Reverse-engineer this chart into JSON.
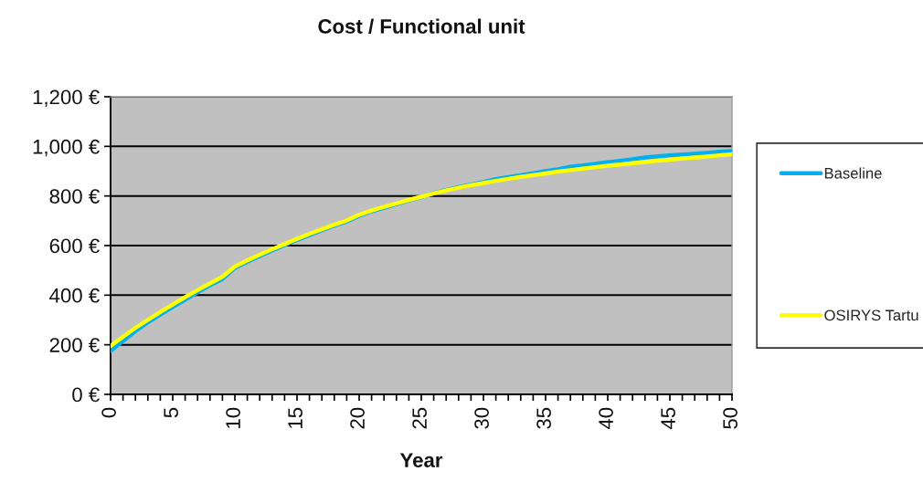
{
  "chart_data": {
    "type": "line",
    "title": "Cost / Functional unit",
    "xlabel": "Year",
    "x": [
      0,
      1,
      2,
      3,
      4,
      5,
      6,
      7,
      8,
      9,
      10,
      11,
      12,
      13,
      14,
      15,
      16,
      17,
      18,
      19,
      20,
      21,
      22,
      23,
      24,
      25,
      26,
      27,
      28,
      29,
      30,
      31,
      32,
      33,
      34,
      35,
      36,
      37,
      38,
      39,
      40,
      41,
      42,
      43,
      44,
      45,
      46,
      47,
      48,
      49,
      50
    ],
    "series": [
      {
        "name": "Baseline",
        "color": "#00b0f0",
        "values": [
          175,
          215,
          255,
          290,
          322,
          352,
          382,
          412,
          440,
          465,
          510,
          535,
          558,
          580,
          602,
          622,
          642,
          662,
          680,
          697,
          720,
          738,
          752,
          767,
          782,
          796,
          811,
          824,
          836,
          846,
          856,
          868,
          876,
          884,
          892,
          900,
          908,
          918,
          923,
          930,
          936,
          942,
          948,
          955,
          960,
          964,
          967,
          970,
          974,
          978,
          981
        ]
      },
      {
        "name": "OSIRYS Tartu",
        "color": "#ffff00",
        "values": [
          195,
          232,
          268,
          300,
          332,
          362,
          392,
          420,
          447,
          474,
          515,
          540,
          563,
          585,
          606,
          627,
          647,
          666,
          684,
          701,
          724,
          741,
          756,
          770,
          784,
          797,
          810,
          822,
          833,
          843,
          852,
          861,
          869,
          877,
          884,
          891,
          898,
          904,
          910,
          916,
          922,
          927,
          932,
          937,
          942,
          946,
          951,
          955,
          959,
          964,
          968
        ]
      }
    ],
    "xlim": [
      0,
      50
    ],
    "xticks": [
      0,
      {
        "value": 1,
        "label": null
      },
      {
        "value": 2,
        "label": null
      },
      {
        "value": 3,
        "label": null
      },
      {
        "value": 4,
        "label": null
      },
      5,
      {
        "value": 6,
        "label": null
      },
      {
        "value": 7,
        "label": null
      },
      {
        "value": 8,
        "label": null
      },
      {
        "value": 9,
        "label": null
      },
      10,
      {
        "value": 11,
        "label": null
      },
      {
        "value": 12,
        "label": null
      },
      {
        "value": 13,
        "label": null
      },
      {
        "value": 14,
        "label": null
      },
      15,
      {
        "value": 16,
        "label": null
      },
      {
        "value": 17,
        "label": null
      },
      {
        "value": 18,
        "label": null
      },
      {
        "value": 19,
        "label": null
      },
      20,
      {
        "value": 21,
        "label": null
      },
      {
        "value": 22,
        "label": null
      },
      {
        "value": 23,
        "label": null
      },
      {
        "value": 24,
        "label": null
      },
      25,
      {
        "value": 26,
        "label": null
      },
      {
        "value": 27,
        "label": null
      },
      {
        "value": 28,
        "label": null
      },
      {
        "value": 29,
        "label": null
      },
      30,
      {
        "value": 31,
        "label": null
      },
      {
        "value": 32,
        "label": null
      },
      {
        "value": 33,
        "label": null
      },
      {
        "value": 34,
        "label": null
      },
      35,
      {
        "value": 36,
        "label": null
      },
      {
        "value": 37,
        "label": null
      },
      {
        "value": 38,
        "label": null
      },
      {
        "value": 39,
        "label": null
      },
      40,
      {
        "value": 41,
        "label": null
      },
      {
        "value": 42,
        "label": null
      },
      {
        "value": 43,
        "label": null
      },
      {
        "value": 44,
        "label": null
      },
      45,
      {
        "value": 46,
        "label": null
      },
      {
        "value": 47,
        "label": null
      },
      {
        "value": 48,
        "label": null
      },
      {
        "value": 49,
        "label": null
      },
      50
    ],
    "ylim": [
      0,
      1200
    ],
    "yticks": [
      {
        "value": 0,
        "label": "0 €"
      },
      {
        "value": 200,
        "label": "200 €"
      },
      {
        "value": 400,
        "label": "400 €"
      },
      {
        "value": 600,
        "label": "600 €"
      },
      {
        "value": 800,
        "label": "800 €"
      },
      {
        "value": 1000,
        "label": "1,000 €"
      },
      {
        "value": 1200,
        "label": "1,200 €"
      }
    ],
    "grid": "y",
    "legend": "right",
    "line_style": "solid"
  }
}
